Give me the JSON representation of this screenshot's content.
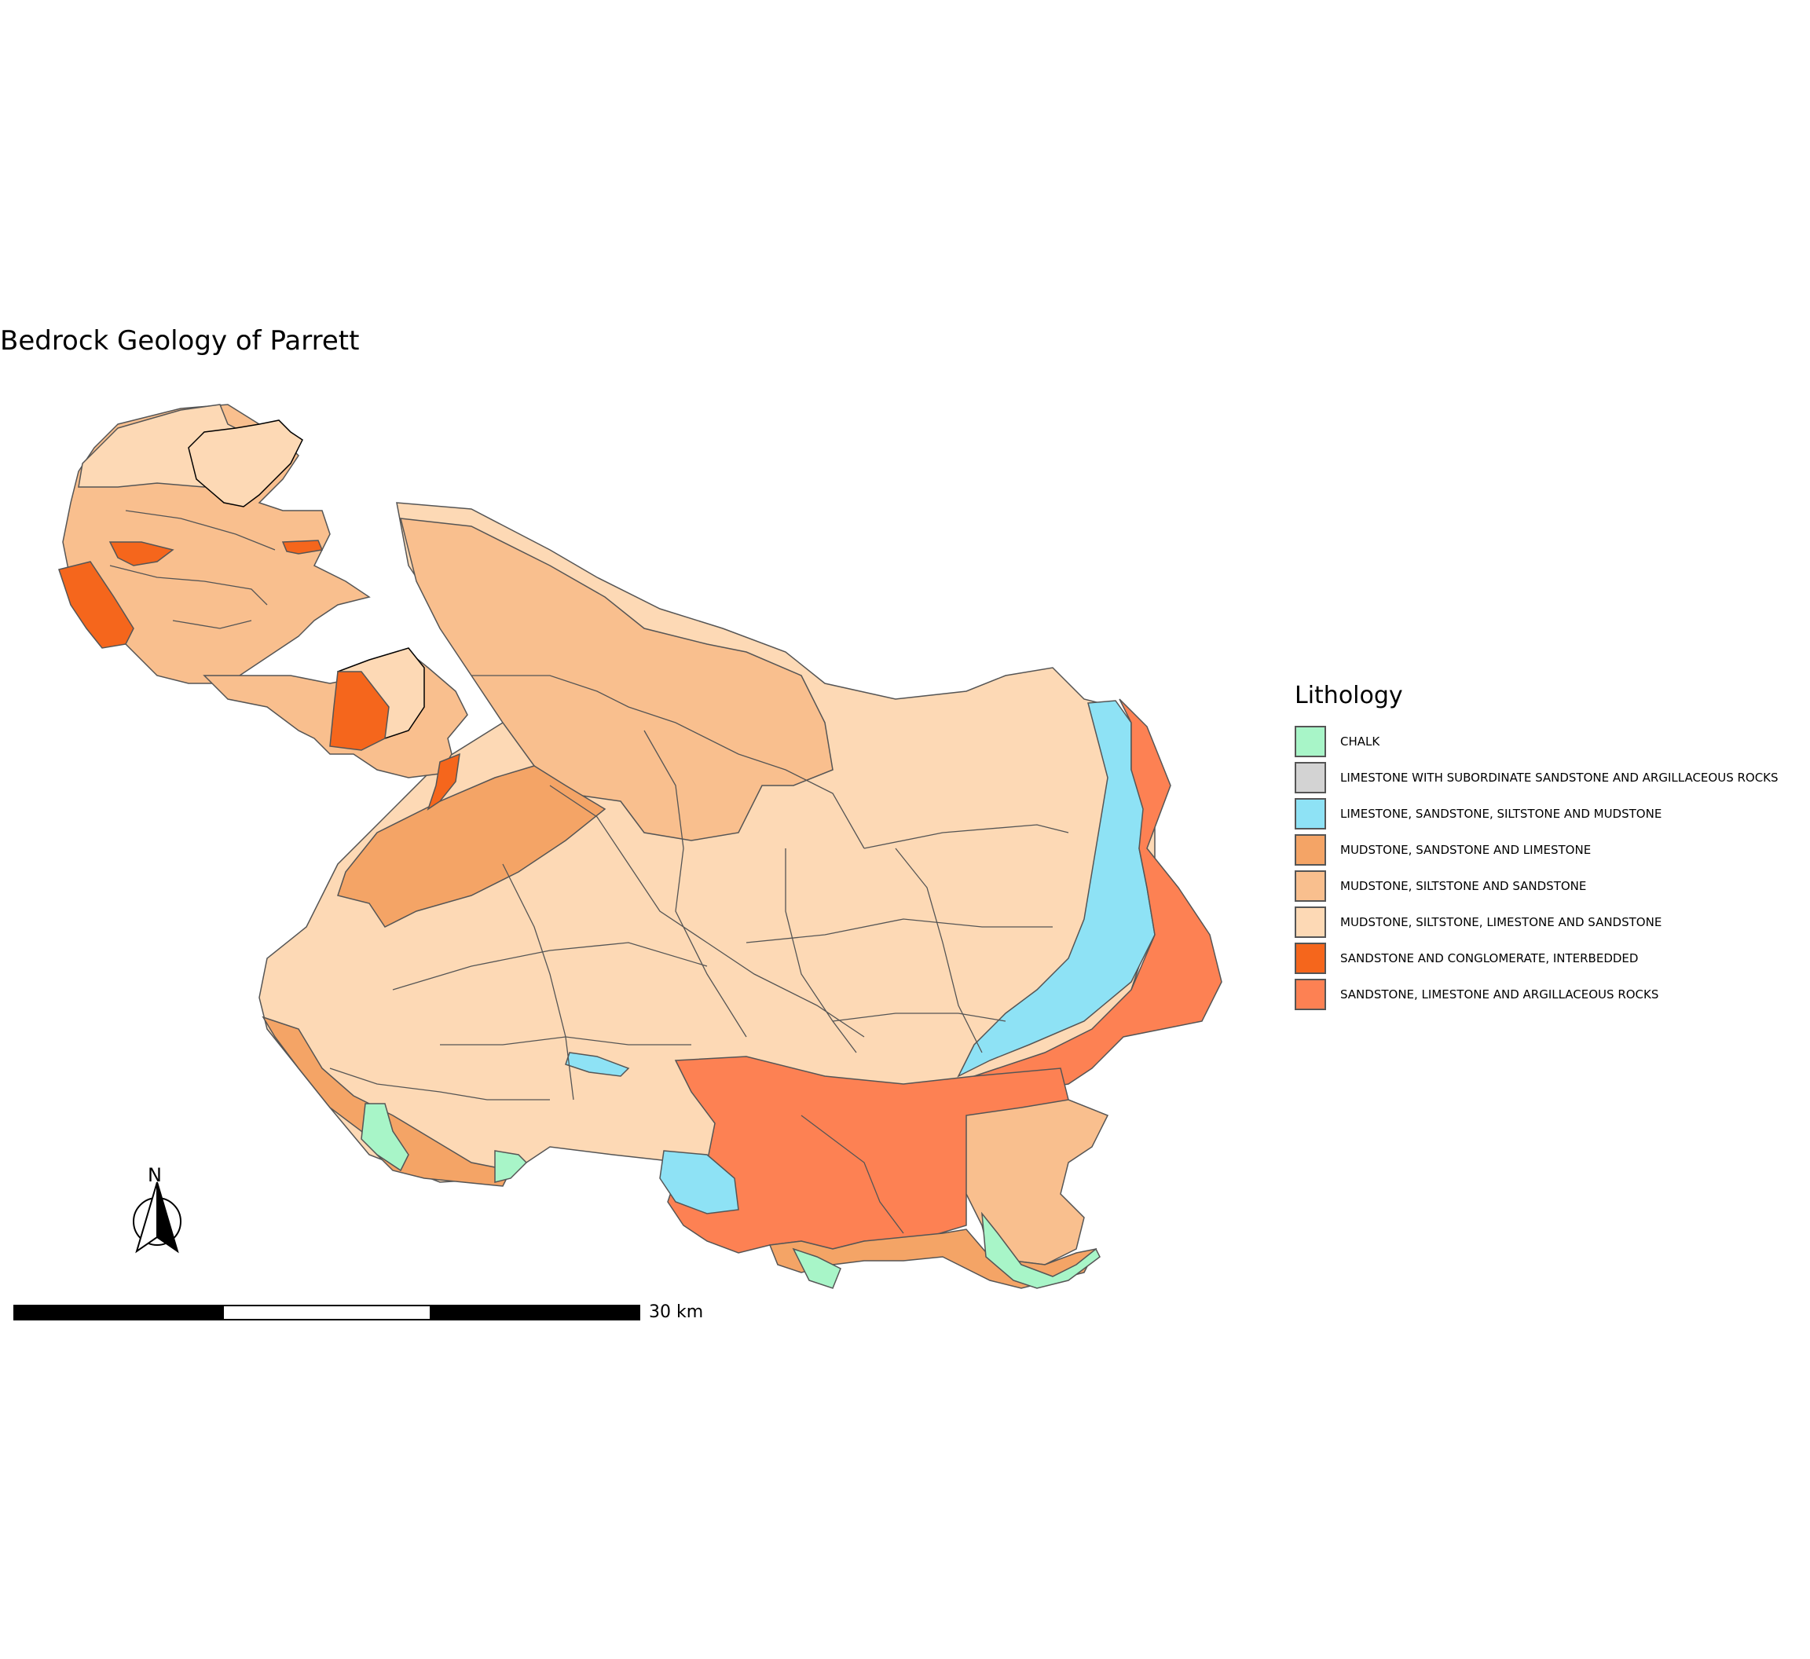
{
  "map": {
    "title": "Bedrock Geology of Parrett",
    "legend": {
      "title": "Lithology",
      "items": [
        {
          "label": "CHALK",
          "color": "#a8f5c8"
        },
        {
          "label": "LIMESTONE WITH SUBORDINATE SANDSTONE AND ARGILLACEOUS ROCKS",
          "color": "#d3d3d3"
        },
        {
          "label": "LIMESTONE, SANDSTONE, SILTSTONE AND MUDSTONE",
          "color": "#8ee2f5"
        },
        {
          "label": "MUDSTONE, SANDSTONE AND LIMESTONE",
          "color": "#f4a466"
        },
        {
          "label": "MUDSTONE, SILTSTONE AND SANDSTONE",
          "color": "#f9bf8e"
        },
        {
          "label": "MUDSTONE, SILTSTONE, LIMESTONE AND SANDSTONE",
          "color": "#fdd9b5"
        },
        {
          "label": "SANDSTONE AND CONGLOMERATE, INTERBEDDED",
          "color": "#f5661c"
        },
        {
          "label": "SANDSTONE, LIMESTONE AND ARGILLACEOUS ROCKS",
          "color": "#fd8153"
        }
      ]
    },
    "north_arrow": {
      "label": "N"
    },
    "scale_bar": {
      "label": "30 km"
    }
  }
}
